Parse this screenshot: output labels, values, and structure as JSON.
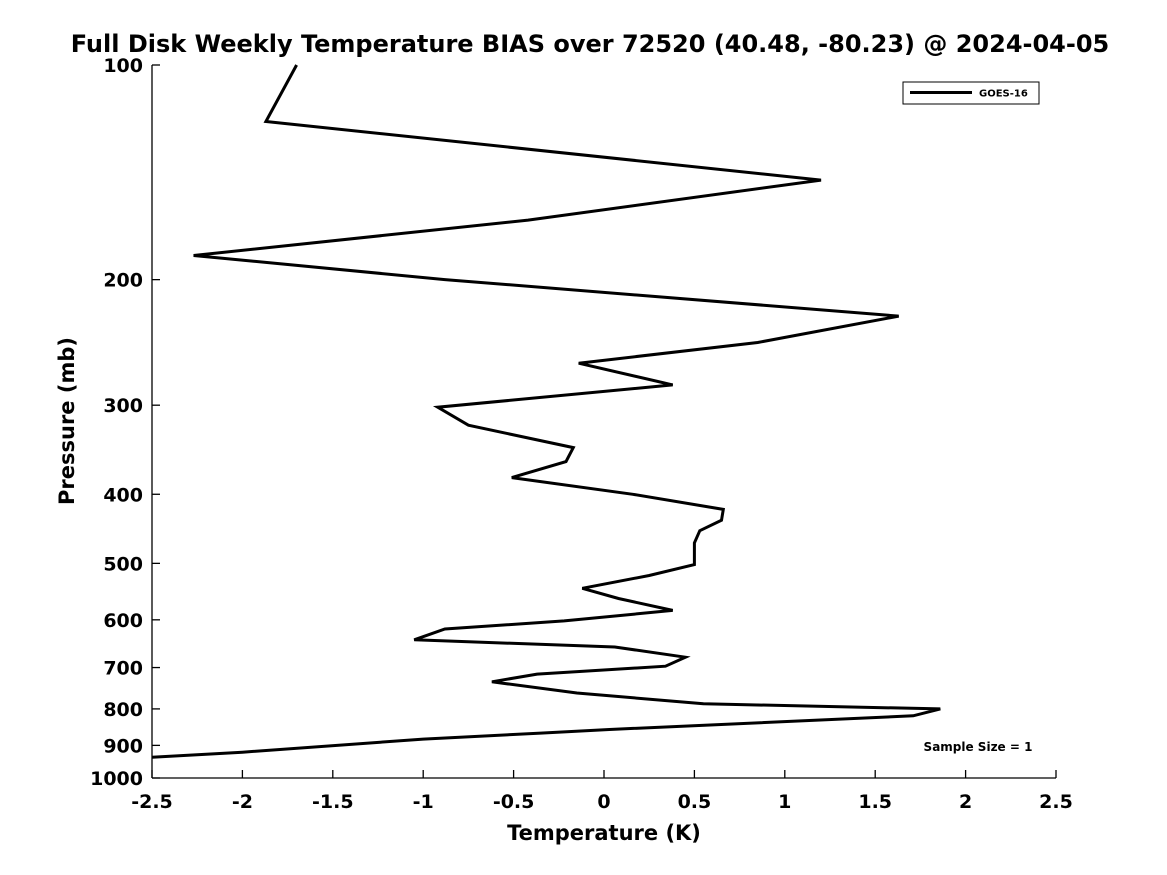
{
  "chart_data": {
    "type": "line",
    "title": "Full Disk Weekly Temperature BIAS over 72520 (40.48, -80.23) @ 2024-04-05",
    "xlabel": "Temperature (K)",
    "ylabel": "Pressure (mb)",
    "xlim": [
      -2.5,
      2.5
    ],
    "ylim": [
      100,
      1000
    ],
    "yscale": "log",
    "y_reversed": true,
    "xticks": [
      -2.5,
      -2,
      -1.5,
      -1,
      -0.5,
      0,
      0.5,
      1,
      1.5,
      2,
      2.5
    ],
    "xtick_labels": [
      "-2.5",
      "-2",
      "-1.5",
      "-1",
      "-0.5",
      "0",
      "0.5",
      "1",
      "1.5",
      "2",
      "2.5"
    ],
    "yticks": [
      100,
      200,
      300,
      400,
      500,
      600,
      700,
      800,
      900,
      1000
    ],
    "ytick_labels": [
      "100",
      "200",
      "300",
      "400",
      "500",
      "600",
      "700",
      "800",
      "900",
      "1000"
    ],
    "grid": false,
    "legend": {
      "position": "top-right",
      "entries": [
        "GOES-16"
      ]
    },
    "annotation": "Sample Size = 1",
    "series": [
      {
        "name": "GOES-16",
        "color": "#000000",
        "points": [
          [
            -1.7,
            100
          ],
          [
            -1.87,
            120
          ],
          [
            1.2,
            145
          ],
          [
            -0.42,
            165
          ],
          [
            -2.27,
            185
          ],
          [
            -0.88,
            200
          ],
          [
            1.63,
            225
          ],
          [
            0.85,
            245
          ],
          [
            -0.14,
            262
          ],
          [
            0.38,
            281
          ],
          [
            -0.92,
            302
          ],
          [
            -0.75,
            320
          ],
          [
            -0.17,
            344
          ],
          [
            -0.21,
            360
          ],
          [
            -0.51,
            379
          ],
          [
            0.16,
            400
          ],
          [
            0.66,
            420
          ],
          [
            0.65,
            435
          ],
          [
            0.53,
            450
          ],
          [
            0.5,
            468
          ],
          [
            0.5,
            502
          ],
          [
            0.25,
            520
          ],
          [
            -0.12,
            542
          ],
          [
            0.08,
            560
          ],
          [
            0.38,
            582
          ],
          [
            -0.22,
            602
          ],
          [
            -0.88,
            618
          ],
          [
            -1.05,
            640
          ],
          [
            0.06,
            655
          ],
          [
            0.45,
            677
          ],
          [
            0.34,
            697
          ],
          [
            -0.37,
            715
          ],
          [
            -0.62,
            733
          ],
          [
            -0.15,
            760
          ],
          [
            0.55,
            787
          ],
          [
            1.86,
            800
          ],
          [
            1.71,
            818
          ],
          [
            0.03,
            855
          ],
          [
            -0.35,
            865
          ],
          [
            -1.0,
            882
          ],
          [
            -2.0,
            920
          ],
          [
            -2.5,
            935
          ]
        ]
      }
    ]
  }
}
